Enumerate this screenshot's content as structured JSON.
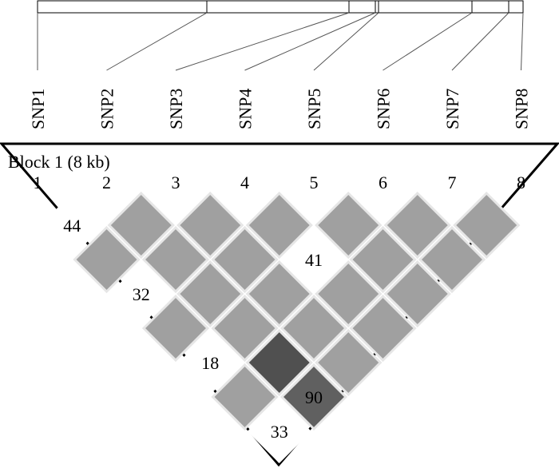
{
  "snp_labels": [
    "SNP1",
    "SNP2",
    "SNP3",
    "SNP4",
    "SNP5",
    "SNP6",
    "SNP7",
    "SNP8"
  ],
  "block_title": "Block 1 (8 kb)",
  "column_numbers": [
    1,
    2,
    3,
    4,
    5,
    6,
    7,
    8
  ],
  "matrix": [
    [
      {
        "color": "#ffffff",
        "value": 44
      },
      {
        "color": "#a0a0a0"
      },
      {
        "color": "#a0a0a0"
      },
      {
        "color": "#a0a0a0"
      },
      {
        "color": "#a0a0a0"
      },
      {
        "color": "#a0a0a0"
      },
      {
        "color": "#a0a0a0"
      }
    ],
    [
      {
        "color": "#a0a0a0"
      },
      {
        "color": "#a0a0a0"
      },
      {
        "color": "#a0a0a0"
      },
      {
        "color": "#ffffff",
        "value": 41
      },
      {
        "color": "#a0a0a0"
      },
      {
        "color": "#a0a0a0"
      }
    ],
    [
      {
        "color": "#ffffff",
        "value": 32
      },
      {
        "color": "#a0a0a0"
      },
      {
        "color": "#a0a0a0"
      },
      {
        "color": "#a0a0a0"
      },
      {
        "color": "#a0a0a0"
      }
    ],
    [
      {
        "color": "#a0a0a0"
      },
      {
        "color": "#a0a0a0"
      },
      {
        "color": "#a0a0a0"
      },
      {
        "color": "#a0a0a0"
      }
    ],
    [
      {
        "color": "#ffffff",
        "value": 18
      },
      {
        "color": "#505050"
      },
      {
        "color": "#a0a0a0"
      }
    ],
    [
      {
        "color": "#a0a0a0"
      },
      {
        "color": "#606060",
        "value": 90
      }
    ],
    [
      {
        "color": "#ffffff",
        "value": 33
      }
    ]
  ]
}
